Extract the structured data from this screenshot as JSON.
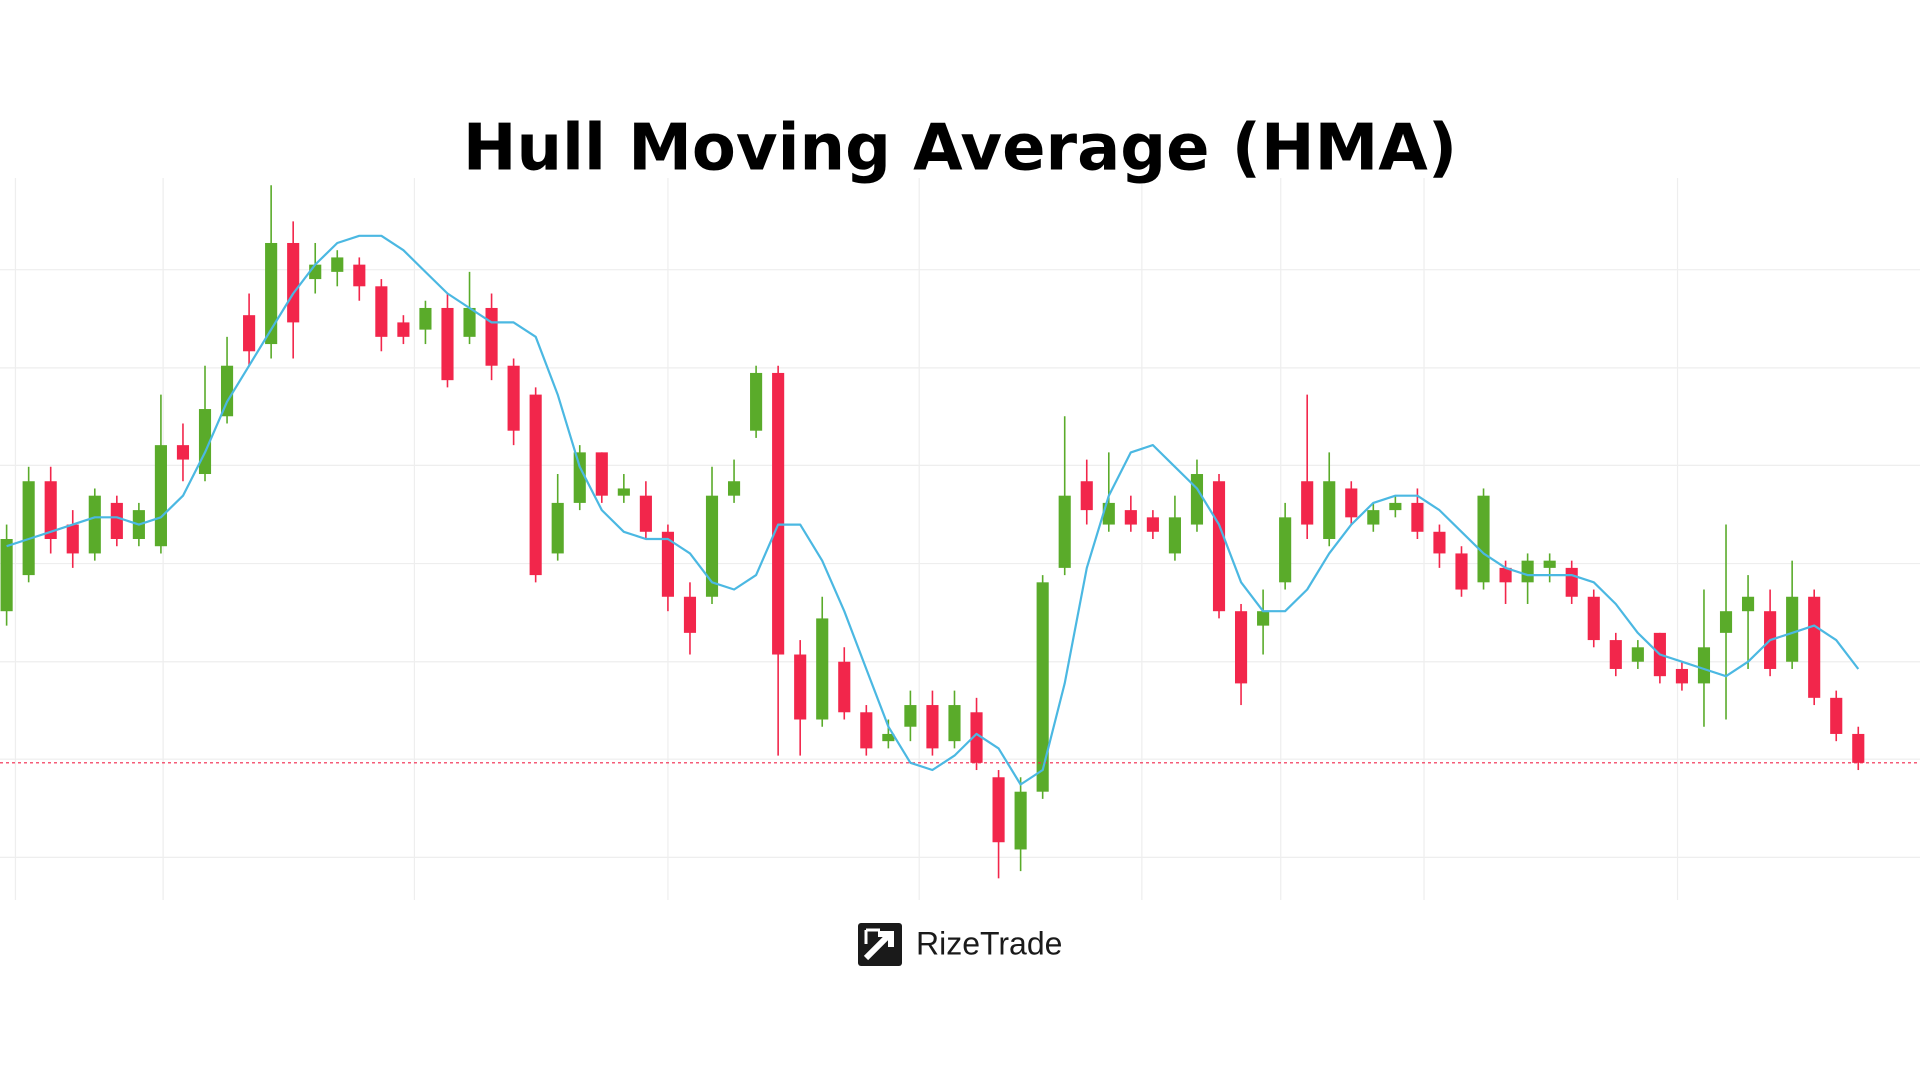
{
  "chart_data": {
    "type": "candlestick",
    "title": "Hull Moving Average (HMA)",
    "up_color": "#5aab2a",
    "down_color": "#f2264b",
    "open": [
      40,
      45,
      58,
      52,
      48,
      55,
      50,
      49,
      63,
      59,
      67,
      81,
      77,
      91,
      86,
      87,
      88,
      85,
      80,
      79,
      82,
      78,
      82,
      74,
      70,
      48,
      55,
      62,
      56,
      56,
      51,
      42,
      42,
      56,
      65,
      73,
      34,
      25,
      33,
      26,
      22,
      24,
      27,
      22,
      26,
      17,
      7,
      15,
      46,
      58,
      52,
      54,
      53,
      48,
      52,
      58,
      40,
      38,
      44,
      58,
      50,
      57,
      52,
      54,
      55,
      51,
      48,
      44,
      46,
      44,
      46,
      46,
      42,
      36,
      33,
      37,
      32,
      30,
      37,
      40,
      40,
      33,
      42,
      28,
      23
    ],
    "high": [
      52,
      60,
      60,
      54,
      57,
      56,
      55,
      70,
      66,
      74,
      78,
      84,
      99,
      94,
      91,
      90,
      89,
      86,
      81,
      83,
      84,
      87,
      84,
      75,
      71,
      59,
      63,
      62,
      59,
      58,
      52,
      44,
      60,
      61,
      74,
      74,
      36,
      42,
      35,
      27,
      25,
      29,
      29,
      29,
      28,
      18,
      17,
      45,
      67,
      61,
      62,
      56,
      54,
      56,
      61,
      59,
      41,
      43,
      55,
      70,
      62,
      58,
      55,
      56,
      57,
      52,
      49,
      57,
      47,
      48,
      48,
      47,
      43,
      37,
      36,
      37,
      33,
      43,
      52,
      45,
      43,
      47,
      43,
      29,
      24
    ],
    "low": [
      38,
      44,
      48,
      46,
      47,
      49,
      49,
      48,
      58,
      58,
      66,
      74,
      75,
      75,
      84,
      85,
      83,
      76,
      77,
      77,
      71,
      77,
      72,
      63,
      44,
      47,
      54,
      55,
      55,
      50,
      40,
      34,
      41,
      55,
      64,
      20,
      20,
      24,
      25,
      20,
      21,
      22,
      20,
      21,
      18,
      3,
      4,
      14,
      45,
      52,
      51,
      51,
      50,
      47,
      51,
      39,
      27,
      34,
      43,
      50,
      49,
      52,
      51,
      53,
      50,
      46,
      42,
      43,
      41,
      41,
      44,
      41,
      35,
      31,
      32,
      30,
      29,
      24,
      25,
      32,
      31,
      32,
      27,
      22,
      18
    ],
    "close": [
      50,
      58,
      50,
      48,
      56,
      50,
      54,
      63,
      61,
      68,
      74,
      76,
      91,
      80,
      88,
      89,
      85,
      78,
      78,
      82,
      72,
      82,
      74,
      65,
      45,
      55,
      62,
      56,
      57,
      51,
      42,
      37,
      56,
      58,
      73,
      34,
      25,
      39,
      26,
      21,
      23,
      27,
      21,
      27,
      19,
      8,
      15,
      44,
      56,
      54,
      55,
      52,
      51,
      53,
      59,
      40,
      30,
      40,
      53,
      52,
      58,
      53,
      54,
      55,
      51,
      48,
      43,
      56,
      44,
      47,
      47,
      42,
      36,
      32,
      35,
      31,
      30,
      35,
      40,
      42,
      32,
      42,
      28,
      23,
      19
    ],
    "hma": {
      "color": "#4bb8e2",
      "values": [
        49,
        50,
        51,
        52,
        53,
        53,
        52,
        53,
        56,
        62,
        69,
        74,
        79,
        84,
        88,
        91,
        92,
        92,
        90,
        87,
        84,
        82,
        80,
        80,
        78,
        70,
        60,
        54,
        51,
        50,
        50,
        48,
        44,
        43,
        45,
        52,
        52,
        47,
        40,
        32,
        24,
        19,
        18,
        20,
        23,
        21,
        16,
        18,
        30,
        46,
        56,
        62,
        63,
        60,
        57,
        52,
        44,
        40,
        40,
        43,
        48,
        52,
        55,
        56,
        56,
        54,
        51,
        48,
        46,
        45,
        45,
        45,
        44,
        41,
        37,
        34,
        33,
        32,
        31,
        33,
        36,
        37,
        38,
        36,
        32
      ]
    },
    "xlim": [
      -0.3,
      86.8
    ],
    "ylim": [
      0,
      100
    ],
    "xticks": [
      0.4,
      7.1,
      18.5,
      30,
      41.4,
      51.5,
      57.8,
      64.3,
      75.8
    ],
    "yticks": [
      5.9,
      19.5,
      33,
      46.6,
      60.2,
      73.7,
      87.3
    ],
    "grid": true,
    "last_price_line": true
  },
  "brand": "RizeTrade"
}
